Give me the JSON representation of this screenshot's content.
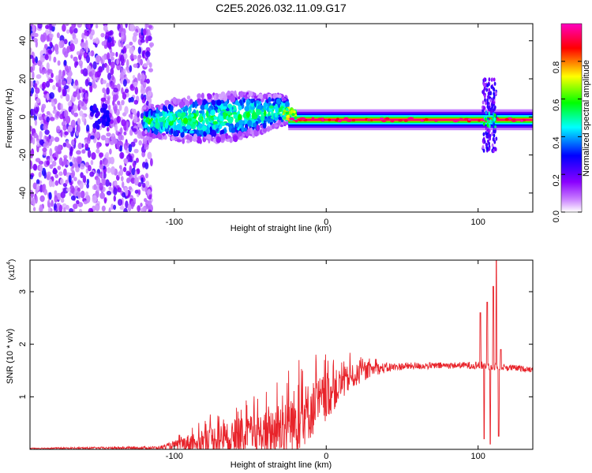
{
  "chart_data": [
    {
      "type": "heatmap",
      "title": "C2E5.2026.032.11.09.G17",
      "xlabel": "Height of straight line (km)",
      "ylabel": "Frequency (Hz)",
      "xlim": [
        -195,
        136
      ],
      "ylim": [
        -50,
        49
      ],
      "xticks": [
        -100,
        0,
        100
      ],
      "xtick_labels": [
        "-100",
        "0",
        "100"
      ],
      "yticks": [
        -40,
        -20,
        0,
        20,
        40
      ],
      "ytick_labels": [
        "-40",
        "-20",
        "0",
        "20",
        "40"
      ],
      "colorbar": {
        "label": "Normalized spectral amplitude",
        "range": [
          0,
          1
        ],
        "ticks": [
          0,
          0.2,
          0.4,
          0.6,
          0.8
        ],
        "tick_labels": [
          "0.0",
          "0.2",
          "0.4",
          "0.6",
          "0.8"
        ],
        "colors": [
          "#ffffff",
          "#8a00ff",
          "#0000ff",
          "#00ffff",
          "#00ff00",
          "#ffff00",
          "#ff0000",
          "#ff00c0"
        ]
      },
      "regions": [
        {
          "name": "noise",
          "x": [
            -195,
            -115
          ],
          "freq_spread": [
            -50,
            49
          ],
          "amplitude": 0.12
        },
        {
          "name": "turbulent",
          "x": [
            -120,
            -25
          ],
          "freq_center": [
            -2,
            4
          ],
          "half_width": [
            5,
            9
          ],
          "amplitude": 0.4
        },
        {
          "name": "stable-tone",
          "x": [
            -25,
            136
          ],
          "freq_center": -1.5,
          "amplitude": 0.95
        },
        {
          "name": "burst",
          "x": [
            103,
            112
          ],
          "freq_spread": [
            -18,
            20
          ],
          "amplitude": 0.45
        }
      ]
    },
    {
      "type": "line",
      "title": "",
      "xlabel": "Height of straight line (km)",
      "ylabel": "SNR (10 * v/v)",
      "y_multiplier": "(x10",
      "y_multiplier_exp": "4",
      "y_multiplier_close": ")",
      "xlim": [
        -195,
        136
      ],
      "ylim": [
        0,
        3.6
      ],
      "xticks": [
        -100,
        0,
        100
      ],
      "xtick_labels": [
        "-100",
        "0",
        "100"
      ],
      "yticks": [
        1,
        2,
        3
      ],
      "ytick_labels": [
        "1",
        "2",
        "3"
      ],
      "color": "#e8232a",
      "envelope": [
        {
          "x": -195,
          "base": 0.02,
          "spread": 0.01
        },
        {
          "x": -110,
          "base": 0.03,
          "spread": 0.03
        },
        {
          "x": -100,
          "base": 0.08,
          "spread": 0.08
        },
        {
          "x": -80,
          "base": 0.18,
          "spread": 0.25
        },
        {
          "x": -60,
          "base": 0.22,
          "spread": 0.3
        },
        {
          "x": -40,
          "base": 0.3,
          "spread": 0.42
        },
        {
          "x": -22,
          "base": 0.5,
          "spread": 0.65
        },
        {
          "x": -10,
          "base": 0.75,
          "spread": 0.55
        },
        {
          "x": 0,
          "base": 1.0,
          "spread": 0.45
        },
        {
          "x": 15,
          "base": 1.35,
          "spread": 0.25
        },
        {
          "x": 30,
          "base": 1.52,
          "spread": 0.12
        },
        {
          "x": 50,
          "base": 1.58,
          "spread": 0.07
        },
        {
          "x": 90,
          "base": 1.6,
          "spread": 0.06
        },
        {
          "x": 100,
          "base": 1.6,
          "spread": 0.08
        },
        {
          "x": 136,
          "base": 1.52,
          "spread": 0.05
        }
      ],
      "spikes": [
        {
          "x": 101.5,
          "y": 2.6
        },
        {
          "x": 104,
          "y": 0.2
        },
        {
          "x": 106,
          "y": 2.8
        },
        {
          "x": 108,
          "y": 0.1
        },
        {
          "x": 110,
          "y": 3.1
        },
        {
          "x": 112,
          "y": 3.6
        },
        {
          "x": 113.5,
          "y": 0.25
        },
        {
          "x": 115,
          "y": 1.9
        }
      ]
    }
  ]
}
